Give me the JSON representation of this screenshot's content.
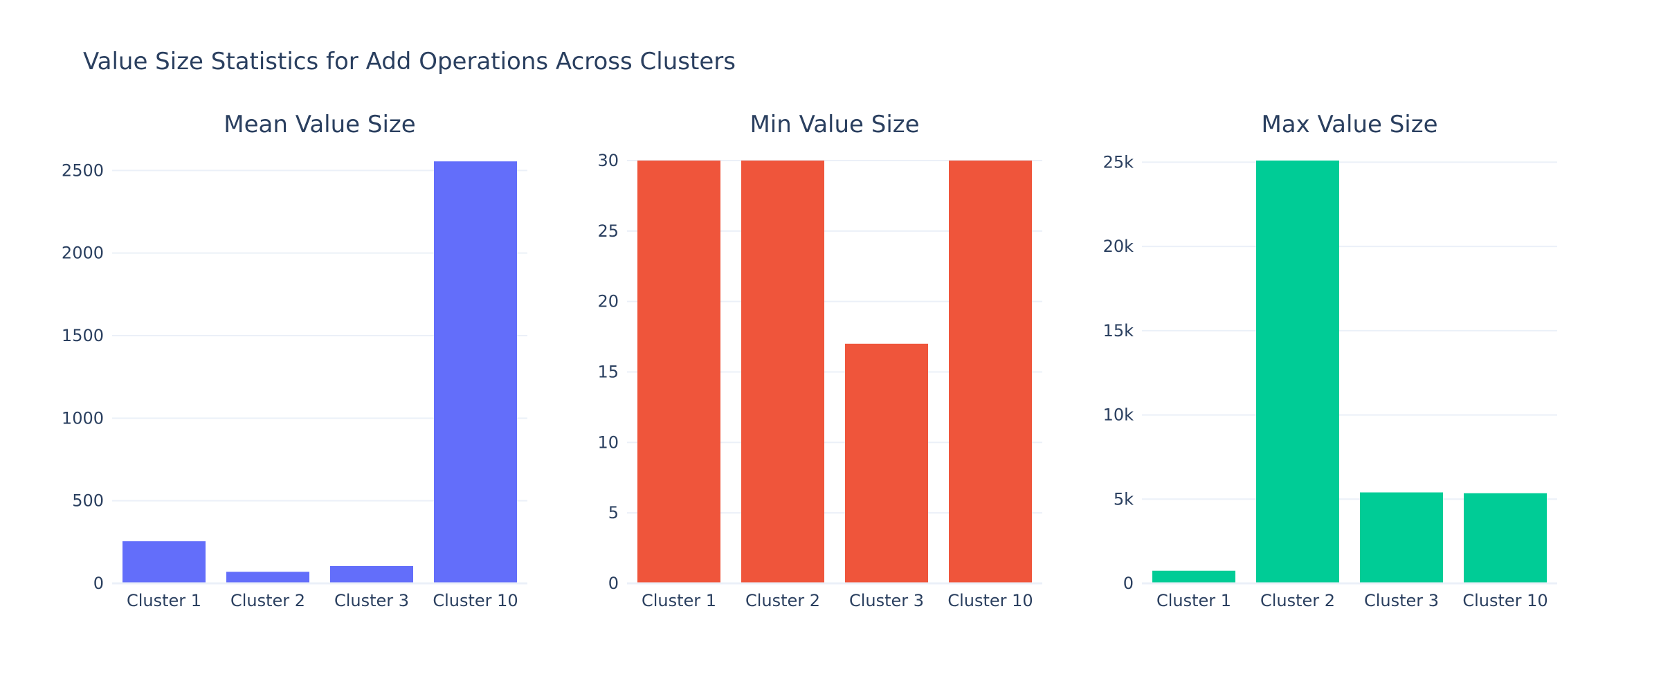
{
  "title": "Value Size Statistics for Add Operations Across Clusters",
  "chart_data": [
    {
      "type": "bar",
      "title": "Mean Value Size",
      "categories": [
        "Cluster 1",
        "Cluster 2",
        "Cluster 3",
        "Cluster 10"
      ],
      "values": [
        255,
        70,
        105,
        2555
      ],
      "ylim": [
        0,
        2560
      ],
      "yticks": [
        0,
        500,
        1000,
        1500,
        2000,
        2500
      ],
      "ytick_labels": [
        "0",
        "500",
        "1000",
        "1500",
        "2000",
        "2500"
      ],
      "color": "#636efa",
      "grid": true
    },
    {
      "type": "bar",
      "title": "Min Value Size",
      "categories": [
        "Cluster 1",
        "Cluster 2",
        "Cluster 3",
        "Cluster 10"
      ],
      "values": [
        30,
        30,
        17,
        30
      ],
      "ylim": [
        0,
        30
      ],
      "yticks": [
        0,
        5,
        10,
        15,
        20,
        25,
        30
      ],
      "ytick_labels": [
        "0",
        "5",
        "10",
        "15",
        "20",
        "25",
        "30"
      ],
      "color": "#ef553b",
      "grid": true
    },
    {
      "type": "bar",
      "title": "Max Value Size",
      "categories": [
        "Cluster 1",
        "Cluster 2",
        "Cluster 3",
        "Cluster 10"
      ],
      "values": [
        750,
        25100,
        5400,
        5350
      ],
      "ylim": [
        0,
        25100
      ],
      "yticks": [
        0,
        5000,
        10000,
        15000,
        20000,
        25000
      ],
      "ytick_labels": [
        "0",
        "5k",
        "10k",
        "15k",
        "20k",
        "25k"
      ],
      "color": "#00cc96",
      "grid": true
    }
  ]
}
